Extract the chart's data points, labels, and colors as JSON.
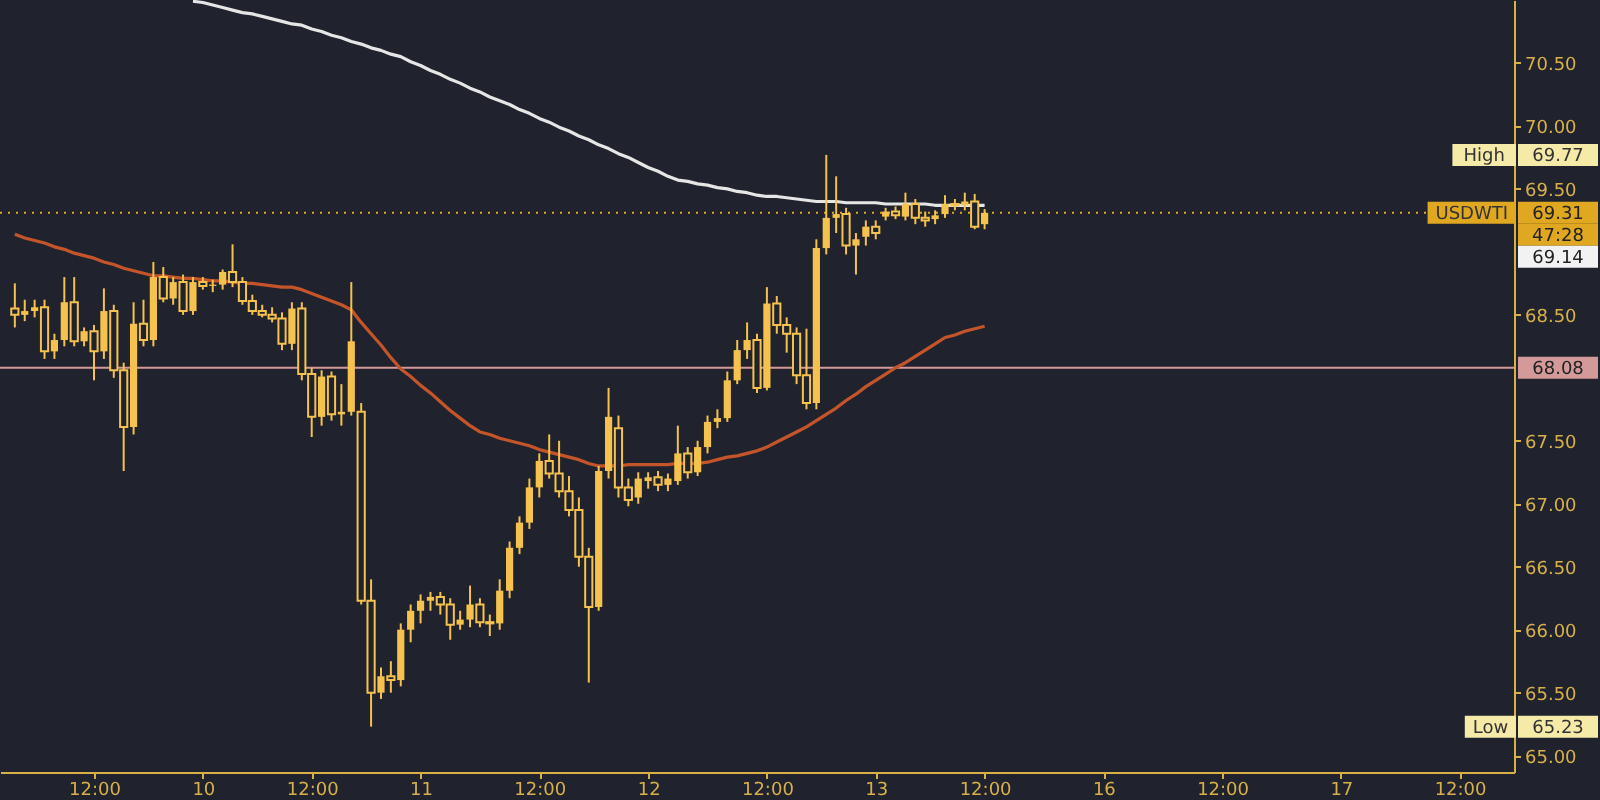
{
  "chart_data": {
    "type": "candlestick",
    "color": "#f4c24d",
    "categories": [
      null,
      null,
      null,
      null,
      null,
      null,
      null,
      null,
      null,
      "12:00",
      null,
      null,
      null,
      null,
      null,
      null,
      null,
      null,
      null,
      null,
      "10",
      null,
      null,
      null,
      null,
      null,
      null,
      null,
      null,
      null,
      null,
      "12:00",
      null,
      null,
      null,
      null,
      null,
      null,
      null,
      null,
      null,
      null,
      "11",
      null,
      null,
      null,
      null,
      null,
      null,
      null,
      null,
      null,
      null,
      null,
      "12:00",
      null,
      null,
      null,
      null,
      null,
      null,
      null,
      null,
      null,
      null,
      "12",
      null,
      null,
      null,
      null,
      null,
      null,
      null,
      null,
      null,
      null,
      null,
      "12:00",
      null,
      null,
      null,
      null,
      null,
      null,
      null,
      null,
      null,
      null,
      "13",
      null,
      null,
      null,
      null,
      null,
      null,
      null,
      null,
      null,
      null,
      "12:00",
      null,
      null,
      null,
      null,
      null,
      null,
      null,
      null,
      null,
      null,
      null,
      "16",
      null,
      null,
      null,
      null,
      null,
      null,
      null,
      null,
      null,
      null,
      null,
      "12:00",
      null,
      null,
      null,
      null,
      null,
      null,
      null,
      null,
      null,
      null,
      null,
      "17",
      null,
      null,
      null,
      null,
      null,
      null,
      null,
      null,
      null,
      null,
      null,
      "12:00",
      null,
      null,
      null,
      null,
      null
    ],
    "ohlc": [
      null,
      [
        68.55,
        68.75,
        68.4,
        68.5
      ],
      [
        68.5,
        68.62,
        68.45,
        68.53
      ],
      [
        68.53,
        68.62,
        68.48,
        68.56
      ],
      [
        68.56,
        68.62,
        68.15,
        68.21
      ],
      [
        68.21,
        68.35,
        68.15,
        68.3
      ],
      [
        68.3,
        68.8,
        68.25,
        68.6
      ],
      [
        68.6,
        68.8,
        68.25,
        68.29
      ],
      [
        68.29,
        68.4,
        68.25,
        68.37
      ],
      [
        68.37,
        68.42,
        67.98,
        68.21
      ],
      [
        68.21,
        68.71,
        68.15,
        68.53
      ],
      [
        68.53,
        68.58,
        68.0,
        68.06
      ],
      [
        68.06,
        68.12,
        67.26,
        67.61
      ],
      [
        67.61,
        68.6,
        67.55,
        68.43
      ],
      [
        68.43,
        68.62,
        68.25,
        68.3
      ],
      [
        68.3,
        68.92,
        68.25,
        68.8
      ],
      [
        68.8,
        68.88,
        68.6,
        68.63
      ],
      [
        68.63,
        68.8,
        68.58,
        68.76
      ],
      [
        68.76,
        68.82,
        68.5,
        68.53
      ],
      [
        68.53,
        68.8,
        68.5,
        68.76
      ],
      [
        68.76,
        68.8,
        68.7,
        68.73
      ],
      [
        68.73,
        68.78,
        68.68,
        68.74
      ],
      [
        68.74,
        68.86,
        68.7,
        68.84
      ],
      [
        68.84,
        69.06,
        68.72,
        68.76
      ],
      [
        68.76,
        68.8,
        68.58,
        68.61
      ],
      [
        68.61,
        68.66,
        68.5,
        68.53
      ],
      [
        68.53,
        68.58,
        68.48,
        68.5
      ],
      [
        68.5,
        68.56,
        68.44,
        68.47
      ],
      [
        68.47,
        68.52,
        68.22,
        68.27
      ],
      [
        68.27,
        68.6,
        68.22,
        68.55
      ],
      [
        68.55,
        68.6,
        67.98,
        68.03
      ],
      [
        68.03,
        68.08,
        67.53,
        67.69
      ],
      [
        67.69,
        68.06,
        67.62,
        68.01
      ],
      [
        68.01,
        68.05,
        67.66,
        67.71
      ],
      [
        67.71,
        67.95,
        67.62,
        67.73
      ],
      [
        67.73,
        68.76,
        67.7,
        68.29
      ],
      [
        67.73,
        67.8,
        66.2,
        66.23
      ],
      [
        66.23,
        66.4,
        65.23,
        65.5
      ],
      [
        65.5,
        65.7,
        65.45,
        65.63
      ],
      [
        65.63,
        65.75,
        65.5,
        65.6
      ],
      [
        65.6,
        66.05,
        65.55,
        66.0
      ],
      [
        66.0,
        66.2,
        65.9,
        66.15
      ],
      [
        66.15,
        66.28,
        66.05,
        66.23
      ],
      [
        66.23,
        66.3,
        66.15,
        66.26
      ],
      [
        66.26,
        66.3,
        66.12,
        66.2
      ],
      [
        66.2,
        66.25,
        65.92,
        66.04
      ],
      [
        66.04,
        66.15,
        66.0,
        66.08
      ],
      [
        66.08,
        66.35,
        66.02,
        66.2
      ],
      [
        66.2,
        66.25,
        66.02,
        66.06
      ],
      [
        66.06,
        66.12,
        65.95,
        66.05
      ],
      [
        66.05,
        66.4,
        66.0,
        66.31
      ],
      [
        66.31,
        66.7,
        66.25,
        66.65
      ],
      [
        66.65,
        66.9,
        66.6,
        66.85
      ],
      [
        66.85,
        67.2,
        66.8,
        67.13
      ],
      [
        67.13,
        67.4,
        67.05,
        67.34
      ],
      [
        67.34,
        67.55,
        67.2,
        67.24
      ],
      [
        67.24,
        67.5,
        67.05,
        67.1
      ],
      [
        67.1,
        67.22,
        66.9,
        66.95
      ],
      [
        66.95,
        67.05,
        66.5,
        66.58
      ],
      [
        66.58,
        66.65,
        65.58,
        66.18
      ],
      [
        66.18,
        67.3,
        66.15,
        67.26
      ],
      [
        67.26,
        67.92,
        67.2,
        67.69
      ],
      [
        67.6,
        67.7,
        67.05,
        67.13
      ],
      [
        67.13,
        67.2,
        66.98,
        67.03
      ],
      [
        67.05,
        67.25,
        67.0,
        67.2
      ],
      [
        67.18,
        67.25,
        67.12,
        67.21
      ],
      [
        67.21,
        67.26,
        67.1,
        67.15
      ],
      [
        67.15,
        67.24,
        67.1,
        67.2
      ],
      [
        67.18,
        67.62,
        67.15,
        67.4
      ],
      [
        67.4,
        67.45,
        67.2,
        67.25
      ],
      [
        67.25,
        67.5,
        67.22,
        67.45
      ],
      [
        67.45,
        67.7,
        67.4,
        67.65
      ],
      [
        67.65,
        67.75,
        67.6,
        67.68
      ],
      [
        67.68,
        68.05,
        67.65,
        67.98
      ],
      [
        67.98,
        68.3,
        67.95,
        68.22
      ],
      [
        68.22,
        68.44,
        68.15,
        68.3
      ],
      [
        68.3,
        68.35,
        67.88,
        67.92
      ],
      [
        67.92,
        68.72,
        67.9,
        68.59
      ],
      [
        68.59,
        68.65,
        68.35,
        68.42
      ],
      [
        68.42,
        68.48,
        68.2,
        68.35
      ],
      [
        68.35,
        68.4,
        67.95,
        68.02
      ],
      [
        68.02,
        68.39,
        67.75,
        67.8
      ],
      [
        67.8,
        69.1,
        67.75,
        69.03
      ],
      [
        69.03,
        69.77,
        68.98,
        69.27
      ],
      [
        69.27,
        69.6,
        69.15,
        69.3
      ],
      [
        69.3,
        69.35,
        68.98,
        69.05
      ],
      [
        69.05,
        69.15,
        68.82,
        69.1
      ],
      [
        69.12,
        69.25,
        69.05,
        69.2
      ],
      [
        69.2,
        69.25,
        69.1,
        69.15
      ],
      [
        69.28,
        69.35,
        69.25,
        69.32
      ],
      [
        69.32,
        69.36,
        69.26,
        69.29
      ],
      [
        69.28,
        69.47,
        69.25,
        69.38
      ],
      [
        69.38,
        69.42,
        69.22,
        69.27
      ],
      [
        69.27,
        69.32,
        69.2,
        69.25
      ],
      [
        69.26,
        69.33,
        69.22,
        69.29
      ],
      [
        69.3,
        69.45,
        69.27,
        69.38
      ],
      [
        69.38,
        69.42,
        69.33,
        69.37
      ],
      [
        69.37,
        69.47,
        69.33,
        69.4
      ],
      [
        69.4,
        69.46,
        69.18,
        69.2
      ],
      [
        69.22,
        69.34,
        69.18,
        69.31
      ],
      null,
      null,
      null,
      null,
      null,
      null,
      null,
      null,
      null,
      null,
      null,
      null,
      null,
      null,
      null,
      null,
      null,
      null,
      null,
      null,
      null,
      null,
      null,
      null,
      null,
      null,
      null,
      null,
      null,
      null,
      null,
      null,
      null,
      null,
      null,
      null,
      null,
      null,
      null,
      null,
      null,
      null,
      null,
      null,
      null,
      null,
      null,
      null,
      null,
      null,
      null,
      null,
      null
    ],
    "series": [
      {
        "type": "line",
        "color": "#e6e6e6",
        "values": [
          null,
          null,
          null,
          null,
          null,
          null,
          null,
          null,
          null,
          null,
          null,
          null,
          null,
          null,
          null,
          null,
          null,
          null,
          null,
          70.99,
          70.98,
          70.96,
          70.94,
          70.92,
          70.9,
          70.89,
          70.87,
          70.85,
          70.83,
          70.81,
          70.8,
          70.77,
          70.75,
          70.72,
          70.7,
          70.67,
          70.65,
          70.62,
          70.6,
          70.57,
          70.55,
          70.51,
          70.48,
          70.44,
          70.41,
          70.37,
          70.34,
          70.3,
          70.27,
          70.23,
          70.2,
          70.17,
          70.13,
          70.1,
          70.06,
          70.03,
          69.99,
          69.96,
          69.92,
          69.89,
          69.85,
          69.82,
          69.78,
          69.75,
          69.71,
          69.67,
          69.64,
          69.6,
          69.57,
          69.56,
          69.54,
          69.53,
          69.51,
          69.5,
          69.48,
          69.47,
          69.45,
          69.44,
          69.44,
          69.43,
          69.42,
          69.41,
          69.4,
          69.4,
          69.4,
          69.39,
          69.39,
          69.39,
          69.39,
          69.38,
          69.38,
          69.38,
          69.38,
          69.38,
          69.37,
          69.37,
          69.37,
          69.37,
          69.37,
          69.37,
          null,
          null,
          null,
          null,
          null,
          null,
          null,
          null,
          null,
          null,
          null,
          null,
          null,
          null,
          null,
          null,
          null,
          null,
          null,
          null,
          null,
          null,
          null,
          null,
          null,
          null,
          null,
          null,
          null,
          null,
          null,
          null,
          null,
          null,
          null,
          null,
          null,
          null,
          null,
          null,
          null,
          null,
          null,
          null,
          null,
          null,
          null,
          null,
          null,
          null,
          null,
          null,
          null
        ]
      },
      {
        "type": "line",
        "color": "#c4552b",
        "values": [
          null,
          69.14,
          69.11,
          69.09,
          69.07,
          69.04,
          69.02,
          68.99,
          68.97,
          68.95,
          68.92,
          68.9,
          68.87,
          68.85,
          68.83,
          68.81,
          68.81,
          68.8,
          68.79,
          68.79,
          68.78,
          68.77,
          68.77,
          68.76,
          68.75,
          68.75,
          68.74,
          68.73,
          68.72,
          68.72,
          68.7,
          68.67,
          68.64,
          68.61,
          68.58,
          68.54,
          68.44,
          68.35,
          68.26,
          68.16,
          68.07,
          68.01,
          67.94,
          67.88,
          67.81,
          67.74,
          67.68,
          67.62,
          67.57,
          67.55,
          67.52,
          67.5,
          67.48,
          67.46,
          67.43,
          67.41,
          67.39,
          67.37,
          67.35,
          67.32,
          67.3,
          67.3,
          67.3,
          67.31,
          67.31,
          67.31,
          67.31,
          67.31,
          67.32,
          67.32,
          67.32,
          67.33,
          67.35,
          67.37,
          67.38,
          67.4,
          67.42,
          67.45,
          67.49,
          67.53,
          67.57,
          67.61,
          67.66,
          67.71,
          67.76,
          67.82,
          67.87,
          67.93,
          67.98,
          68.03,
          68.08,
          68.12,
          68.17,
          68.22,
          68.27,
          68.32,
          68.34,
          68.37,
          68.39,
          68.41,
          null,
          null,
          null,
          null,
          null,
          null,
          null,
          null,
          null,
          null,
          null,
          null,
          null,
          null,
          null,
          null,
          null,
          null,
          null,
          null,
          null,
          null,
          null,
          null,
          null,
          null,
          null,
          null,
          null,
          null,
          null,
          null,
          null,
          null,
          null,
          null,
          null,
          null,
          null,
          null,
          null,
          null,
          null,
          null,
          null,
          null,
          null,
          null,
          null,
          null,
          null,
          null,
          null
        ]
      }
    ],
    "ylim": [
      64.87,
      71.0
    ],
    "yticks": [
      {
        "value": 65,
        "label": "65.00"
      },
      {
        "value": 65.5,
        "label": "65.50"
      },
      {
        "value": 66,
        "label": "66.00"
      },
      {
        "value": 66.5,
        "label": "66.50"
      },
      {
        "value": 67,
        "label": "67.00"
      },
      {
        "value": 67.5,
        "label": "67.50"
      },
      {
        "value": 68.5,
        "label": "68.50"
      },
      {
        "value": 69.5,
        "label": "69.50"
      },
      {
        "value": 70,
        "label": "70.00"
      },
      {
        "value": 70.5,
        "label": "70.50"
      }
    ],
    "ref_lines": [
      {
        "axis": "y",
        "value": 69.31,
        "label": "69.31",
        "color": "#e0a820",
        "line_style": "dotted"
      },
      {
        "axis": "y",
        "value": 68.08,
        "label": "68.08",
        "color": "#d49a9a",
        "line_style": "solid"
      }
    ],
    "annotations": [
      "47:28",
      "69.14",
      {
        "text": "USDWTI",
        "y": 69.31
      },
      {
        "text": "High",
        "y": 69.77
      },
      "69.77",
      {
        "text": "Low",
        "y": 65.23
      },
      "65.23"
    ]
  }
}
